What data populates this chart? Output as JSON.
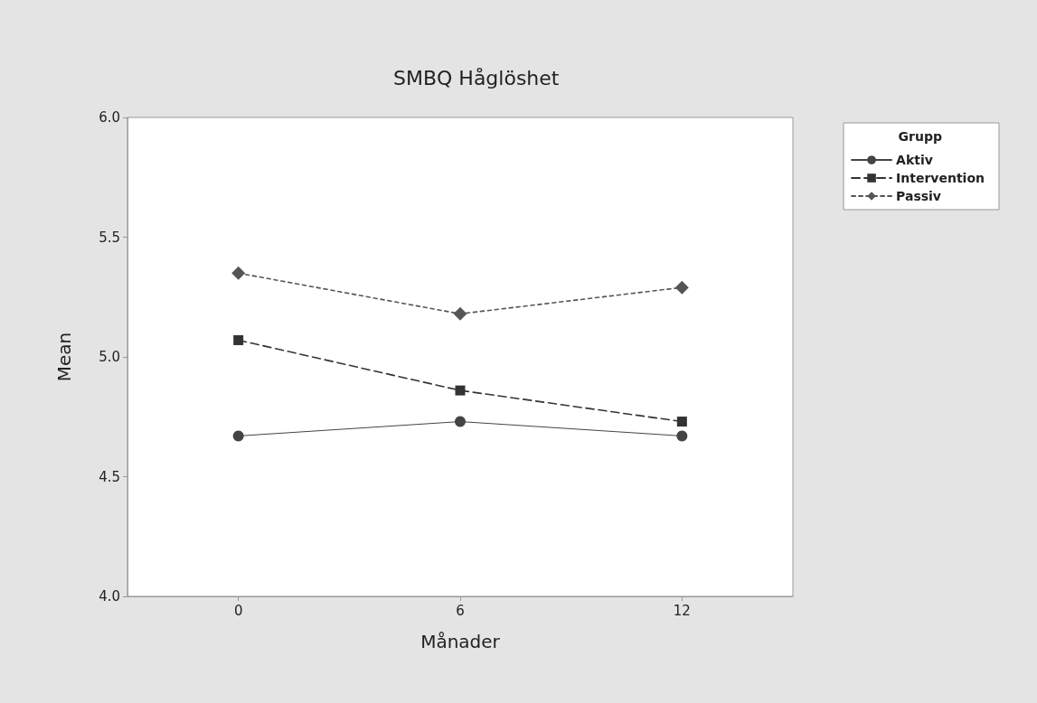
{
  "chart_data": {
    "type": "line",
    "title": "SMBQ Håglöshet",
    "xlabel": "Månader",
    "ylabel": "Mean",
    "legend_title": "Grupp",
    "legend": "top right",
    "grid": false,
    "x": [
      0,
      6,
      12
    ],
    "xlim": [
      -3,
      15
    ],
    "xticks": [
      0,
      6,
      12
    ],
    "ylim": [
      4.0,
      6.0
    ],
    "yticks": [
      {
        "value": 4.0,
        "label": "4.0"
      },
      {
        "value": 4.5,
        "label": "4.5"
      },
      {
        "value": 5.0,
        "label": "5.0"
      },
      {
        "value": 5.5,
        "label": "5.5"
      },
      {
        "value": 6.0,
        "label": "6.0"
      }
    ],
    "series": [
      {
        "name": "Aktiv",
        "color": "#444444",
        "values": [
          4.67,
          4.73,
          4.67
        ],
        "marker": "circle",
        "line_style": "solid"
      },
      {
        "name": "Intervention",
        "color": "#333333",
        "values": [
          5.07,
          4.86,
          4.73
        ],
        "marker": "square",
        "line_style": "dashed"
      },
      {
        "name": "Passiv",
        "color": "#555555",
        "values": [
          5.35,
          5.18,
          5.29
        ],
        "marker": "diamond",
        "line_style": "dotted"
      }
    ]
  }
}
